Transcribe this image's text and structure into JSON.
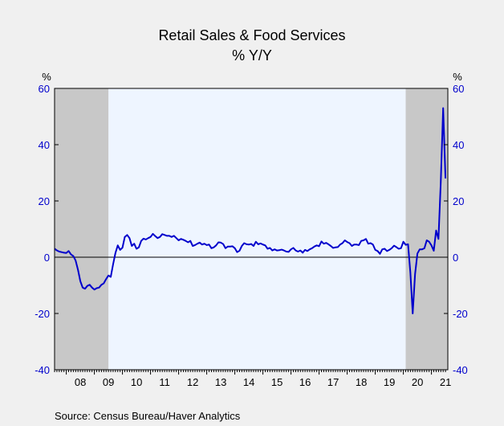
{
  "chart_data": {
    "type": "line",
    "title": "Retail Sales & Food Services",
    "subtitle": "% Y/Y",
    "y_unit_left": "%",
    "y_unit_right": "%",
    "ylim": [
      -40,
      60
    ],
    "y_ticks": [
      -40,
      -20,
      0,
      20,
      40,
      60
    ],
    "x_range": [
      2007.583,
      2021.583
    ],
    "x_tick_labels": [
      "08",
      "09",
      "10",
      "11",
      "12",
      "13",
      "14",
      "15",
      "16",
      "17",
      "18",
      "19",
      "20",
      "21"
    ],
    "recession_shading": [
      [
        2007.583,
        2009.5
      ],
      [
        2020.083,
        2021.583
      ]
    ],
    "zero_line": true,
    "source": "Source:   Census Bureau/Haver Analytics",
    "colors": {
      "line": "#0000cc",
      "axis_labels": "#0000cc",
      "plot_background": "#eef5ff",
      "recession": "#c8c8c8"
    },
    "series": [
      {
        "points": [
          [
            2007.583,
            3.0
          ],
          [
            2007.667,
            2.4
          ],
          [
            2007.75,
            2.0
          ],
          [
            2007.833,
            1.8
          ],
          [
            2007.917,
            1.6
          ],
          [
            2008.0,
            1.5
          ],
          [
            2008.083,
            2.2
          ],
          [
            2008.167,
            1.0
          ],
          [
            2008.25,
            0.4
          ],
          [
            2008.333,
            -1.2
          ],
          [
            2008.417,
            -4.5
          ],
          [
            2008.5,
            -8.5
          ],
          [
            2008.583,
            -10.8
          ],
          [
            2008.667,
            -11.2
          ],
          [
            2008.75,
            -10.2
          ],
          [
            2008.833,
            -9.8
          ],
          [
            2008.917,
            -10.8
          ],
          [
            2009.0,
            -11.5
          ],
          [
            2009.083,
            -11.0
          ],
          [
            2009.167,
            -10.8
          ],
          [
            2009.25,
            -9.8
          ],
          [
            2009.333,
            -9.3
          ],
          [
            2009.417,
            -7.8
          ],
          [
            2009.5,
            -6.5
          ],
          [
            2009.583,
            -7.0
          ],
          [
            2009.667,
            -2.5
          ],
          [
            2009.75,
            1.5
          ],
          [
            2009.833,
            4.2
          ],
          [
            2009.917,
            2.6
          ],
          [
            2010.0,
            3.4
          ],
          [
            2010.083,
            7.2
          ],
          [
            2010.167,
            7.9
          ],
          [
            2010.25,
            6.8
          ],
          [
            2010.333,
            4.0
          ],
          [
            2010.417,
            4.8
          ],
          [
            2010.5,
            3.0
          ],
          [
            2010.583,
            3.5
          ],
          [
            2010.667,
            5.8
          ],
          [
            2010.75,
            6.6
          ],
          [
            2010.833,
            6.3
          ],
          [
            2010.917,
            6.8
          ],
          [
            2011.0,
            7.2
          ],
          [
            2011.083,
            8.3
          ],
          [
            2011.167,
            7.5
          ],
          [
            2011.25,
            6.8
          ],
          [
            2011.333,
            7.2
          ],
          [
            2011.417,
            8.2
          ],
          [
            2011.5,
            7.9
          ],
          [
            2011.583,
            7.6
          ],
          [
            2011.667,
            7.6
          ],
          [
            2011.75,
            7.2
          ],
          [
            2011.833,
            7.6
          ],
          [
            2011.917,
            6.8
          ],
          [
            2012.0,
            6.0
          ],
          [
            2012.083,
            6.5
          ],
          [
            2012.167,
            6.2
          ],
          [
            2012.25,
            5.8
          ],
          [
            2012.333,
            5.3
          ],
          [
            2012.417,
            5.8
          ],
          [
            2012.5,
            4.0
          ],
          [
            2012.583,
            4.3
          ],
          [
            2012.667,
            4.8
          ],
          [
            2012.75,
            5.2
          ],
          [
            2012.833,
            4.5
          ],
          [
            2012.917,
            4.8
          ],
          [
            2013.0,
            4.3
          ],
          [
            2013.083,
            4.5
          ],
          [
            2013.167,
            3.2
          ],
          [
            2013.25,
            3.5
          ],
          [
            2013.333,
            4.2
          ],
          [
            2013.417,
            5.3
          ],
          [
            2013.5,
            5.2
          ],
          [
            2013.583,
            4.7
          ],
          [
            2013.667,
            3.2
          ],
          [
            2013.75,
            3.8
          ],
          [
            2013.833,
            3.8
          ],
          [
            2013.917,
            3.9
          ],
          [
            2014.0,
            3.2
          ],
          [
            2014.083,
            1.8
          ],
          [
            2014.167,
            2.3
          ],
          [
            2014.25,
            4.0
          ],
          [
            2014.333,
            5.0
          ],
          [
            2014.417,
            4.6
          ],
          [
            2014.5,
            4.5
          ],
          [
            2014.583,
            4.7
          ],
          [
            2014.667,
            4.0
          ],
          [
            2014.75,
            5.5
          ],
          [
            2014.833,
            4.6
          ],
          [
            2014.917,
            4.9
          ],
          [
            2015.0,
            4.5
          ],
          [
            2015.083,
            4.2
          ],
          [
            2015.167,
            3.0
          ],
          [
            2015.25,
            3.3
          ],
          [
            2015.333,
            2.4
          ],
          [
            2015.417,
            2.8
          ],
          [
            2015.5,
            2.4
          ],
          [
            2015.583,
            2.5
          ],
          [
            2015.667,
            2.7
          ],
          [
            2015.75,
            2.4
          ],
          [
            2015.833,
            2.0
          ],
          [
            2015.917,
            1.9
          ],
          [
            2016.0,
            2.8
          ],
          [
            2016.083,
            3.3
          ],
          [
            2016.167,
            2.4
          ],
          [
            2016.25,
            2.0
          ],
          [
            2016.333,
            2.4
          ],
          [
            2016.417,
            1.6
          ],
          [
            2016.5,
            2.6
          ],
          [
            2016.583,
            2.2
          ],
          [
            2016.667,
            2.8
          ],
          [
            2016.75,
            3.2
          ],
          [
            2016.833,
            3.8
          ],
          [
            2016.917,
            4.2
          ],
          [
            2017.0,
            3.9
          ],
          [
            2017.083,
            5.6
          ],
          [
            2017.167,
            4.8
          ],
          [
            2017.25,
            5.1
          ],
          [
            2017.333,
            4.6
          ],
          [
            2017.417,
            4.0
          ],
          [
            2017.5,
            3.3
          ],
          [
            2017.583,
            3.5
          ],
          [
            2017.667,
            3.6
          ],
          [
            2017.75,
            4.5
          ],
          [
            2017.833,
            5.0
          ],
          [
            2017.917,
            6.0
          ],
          [
            2018.0,
            5.4
          ],
          [
            2018.083,
            5.0
          ],
          [
            2018.167,
            4.0
          ],
          [
            2018.25,
            4.5
          ],
          [
            2018.333,
            4.5
          ],
          [
            2018.417,
            4.3
          ],
          [
            2018.5,
            5.8
          ],
          [
            2018.583,
            6.0
          ],
          [
            2018.667,
            6.5
          ],
          [
            2018.75,
            4.8
          ],
          [
            2018.833,
            5.0
          ],
          [
            2018.917,
            4.5
          ],
          [
            2019.0,
            2.6
          ],
          [
            2019.083,
            2.2
          ],
          [
            2019.167,
            1.2
          ],
          [
            2019.25,
            2.8
          ],
          [
            2019.333,
            3.0
          ],
          [
            2019.417,
            2.2
          ],
          [
            2019.5,
            2.6
          ],
          [
            2019.583,
            3.2
          ],
          [
            2019.667,
            4.1
          ],
          [
            2019.75,
            3.6
          ],
          [
            2019.833,
            3.0
          ],
          [
            2019.917,
            3.2
          ],
          [
            2020.0,
            5.5
          ],
          [
            2020.083,
            4.4
          ],
          [
            2020.167,
            4.6
          ],
          [
            2020.25,
            -5.5
          ],
          [
            2020.333,
            -20.0
          ],
          [
            2020.417,
            -6.0
          ],
          [
            2020.5,
            1.3
          ],
          [
            2020.583,
            2.8
          ],
          [
            2020.667,
            2.8
          ],
          [
            2020.75,
            3.2
          ],
          [
            2020.833,
            6.0
          ],
          [
            2020.917,
            5.5
          ],
          [
            2021.0,
            4.2
          ],
          [
            2021.083,
            2.3
          ],
          [
            2021.167,
            9.5
          ],
          [
            2021.25,
            6.5
          ],
          [
            2021.333,
            27.0
          ],
          [
            2021.417,
            53.0
          ],
          [
            2021.5,
            28.0
          ]
        ]
      }
    ]
  }
}
